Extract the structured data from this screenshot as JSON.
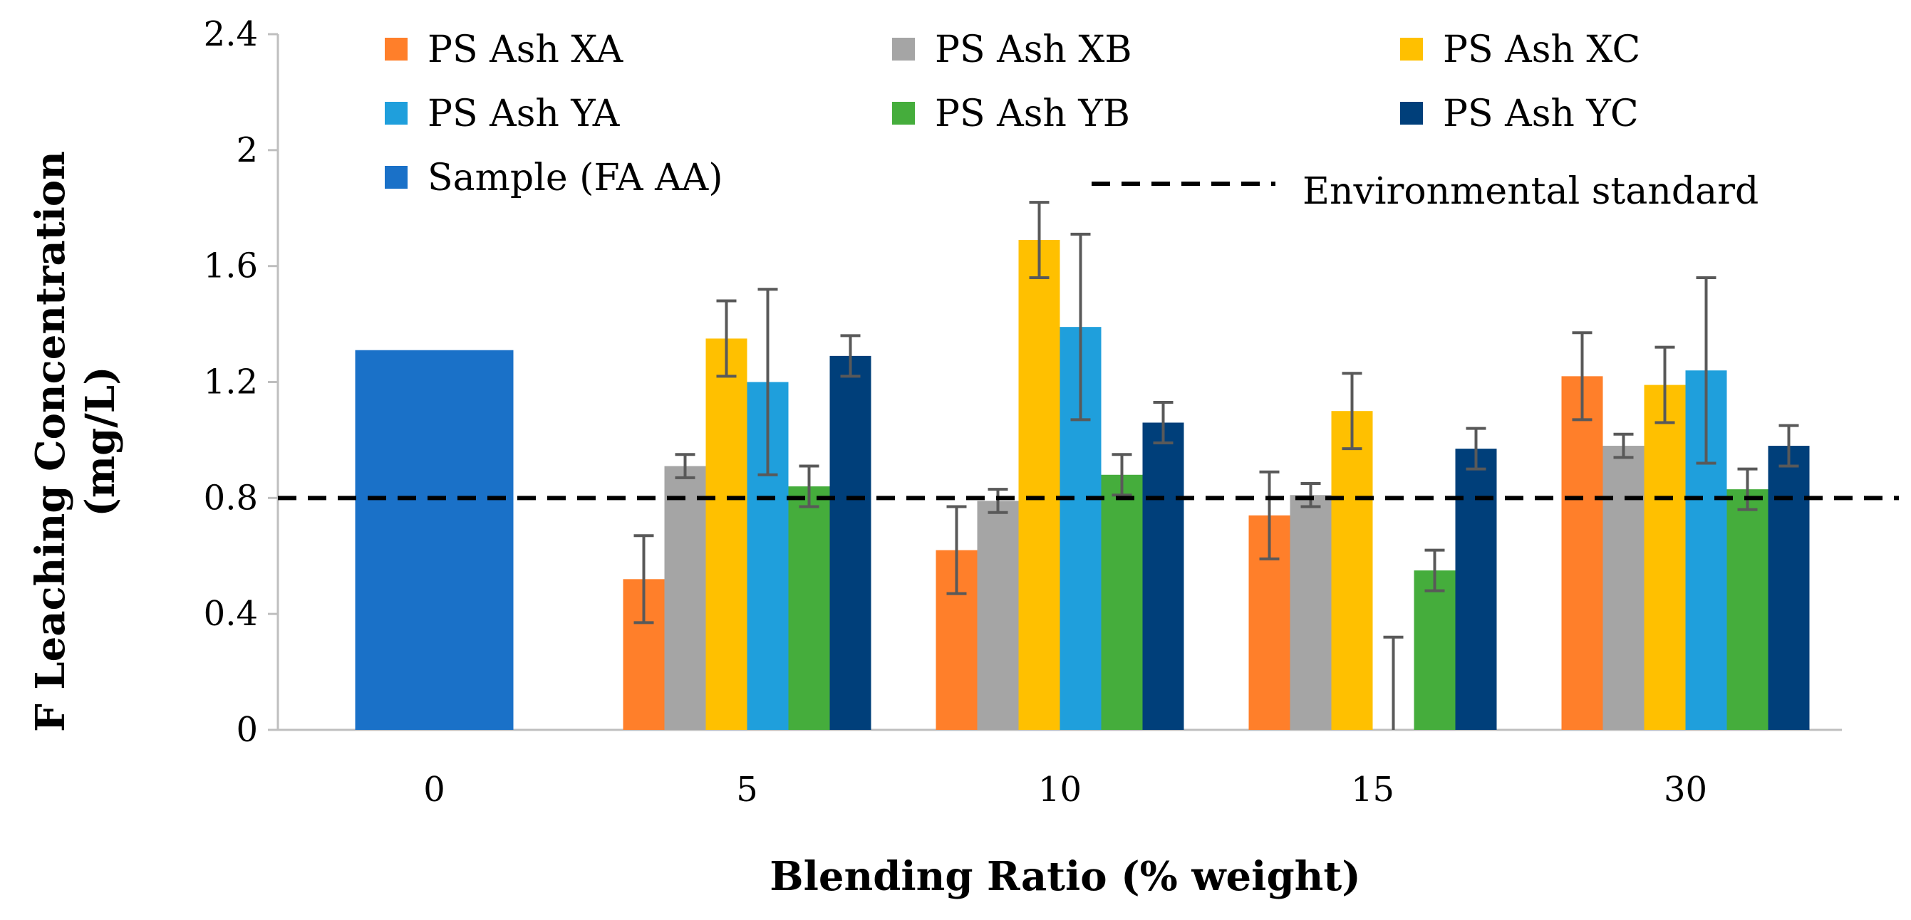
{
  "chart_data": {
    "type": "bar",
    "title": "",
    "xlabel": "Blending Ratio (% weight)",
    "ylabel_line1": "F Leaching Concentration",
    "ylabel_line2": "(mg/L)",
    "ylim": [
      0,
      2.4
    ],
    "yticks": [
      "0",
      "0.4",
      "0.8",
      "1.2",
      "1.6",
      "2",
      "2.4"
    ],
    "categories": [
      "0",
      "5",
      "10",
      "15",
      "30"
    ],
    "series": [
      {
        "name": "PS Ash XA",
        "color": "#FF7F2A",
        "values": [
          null,
          0.52,
          0.62,
          0.74,
          1.22
        ],
        "errors": [
          null,
          0.15,
          0.15,
          0.15,
          0.15
        ]
      },
      {
        "name": "PS Ash XB",
        "color": "#A5A5A5",
        "values": [
          null,
          0.91,
          0.79,
          0.81,
          0.98
        ],
        "errors": [
          null,
          0.04,
          0.04,
          0.04,
          0.04
        ]
      },
      {
        "name": "PS Ash XC",
        "color": "#FFC000",
        "values": [
          null,
          1.35,
          1.69,
          1.1,
          1.19
        ],
        "errors": [
          null,
          0.13,
          0.13,
          0.13,
          0.13
        ]
      },
      {
        "name": "PS Ash YA",
        "color": "#1F9FDC",
        "values": [
          null,
          1.2,
          1.39,
          0.0,
          1.24
        ],
        "errors": [
          null,
          0.32,
          0.32,
          0.32,
          0.32
        ]
      },
      {
        "name": "PS Ash YB",
        "color": "#45AD3C",
        "values": [
          null,
          0.84,
          0.88,
          0.55,
          0.83
        ],
        "errors": [
          null,
          0.07,
          0.07,
          0.07,
          0.07
        ]
      },
      {
        "name": "PS Ash YC",
        "color": "#003F7A",
        "values": [
          null,
          1.29,
          1.06,
          0.97,
          0.98
        ],
        "errors": [
          null,
          0.07,
          0.07,
          0.07,
          0.07
        ]
      },
      {
        "name": "Sample (FA AA)",
        "color": "#1A71C8",
        "values": [
          1.31,
          null,
          null,
          null,
          null
        ],
        "errors": [
          null,
          null,
          null,
          null,
          null
        ]
      }
    ],
    "reference_line": {
      "name": "Environmental standard",
      "value": 0.8,
      "style": "dashed",
      "color": "#000000"
    },
    "legend_position": "top",
    "grid": false
  }
}
